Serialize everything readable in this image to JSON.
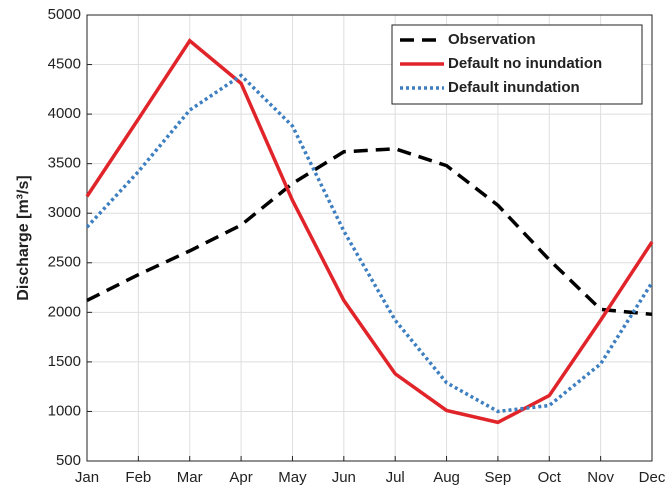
{
  "chart_data": {
    "type": "line",
    "y_label": "Discharge [m³/s]",
    "categories": [
      "Jan",
      "Feb",
      "Mar",
      "Apr",
      "May",
      "Jun",
      "Jul",
      "Aug",
      "Sep",
      "Oct",
      "Nov",
      "Dec"
    ],
    "series": [
      {
        "name": "Observation",
        "color": "#000000",
        "line_style": "dashed",
        "values": [
          2120,
          2380,
          2620,
          2880,
          3300,
          3620,
          3650,
          3480,
          3080,
          2530,
          2030,
          1980
        ]
      },
      {
        "name": "Default no inundation",
        "color": "#e0242a",
        "line_style": "solid",
        "values": [
          3170,
          3950,
          4740,
          4310,
          3130,
          2120,
          1380,
          1010,
          890,
          1160,
          1920,
          2710
        ]
      },
      {
        "name": "Default inundation",
        "color": "#3d7fc0",
        "line_style": "dotted",
        "values": [
          2860,
          3420,
          4040,
          4390,
          3880,
          2820,
          1920,
          1290,
          1000,
          1060,
          1480,
          2300
        ]
      }
    ],
    "ylim": [
      500,
      5000
    ],
    "yticks": [
      500,
      1000,
      1500,
      2000,
      2500,
      3000,
      3500,
      4000,
      4500,
      5000
    ],
    "grid": true,
    "legend": "upper right"
  }
}
